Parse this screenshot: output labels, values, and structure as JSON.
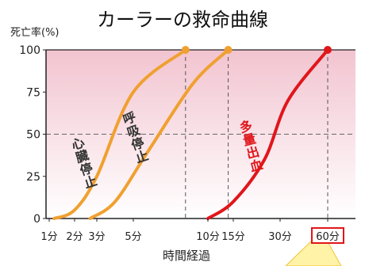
{
  "chart_data": {
    "type": "line",
    "title": "カーラーの救命曲線",
    "ylabel": "死亡率(%)",
    "xlabel": "時間経過",
    "ylim": [
      0,
      100
    ],
    "y_ticks": [
      "100",
      "75",
      "50",
      "25",
      "0"
    ],
    "y_tick_values": [
      100,
      75,
      50,
      25,
      0
    ],
    "x_ticks": [
      "1分",
      "2分",
      "3分",
      "5分",
      "10分",
      "15分",
      "30分",
      "60分"
    ],
    "x_tick_minutes": [
      1,
      2,
      3,
      5,
      10,
      15,
      30,
      60
    ],
    "highlight_tick": "60分",
    "grid": "dashed horizontal line at 50%; dashed vertical lines at the 100% point of each curve",
    "series": [
      {
        "name": "心臓停止",
        "color": "#f0a030",
        "minutes": [
          1.2,
          2,
          3,
          5,
          8.5
        ],
        "values": [
          0,
          5,
          25,
          75,
          100
        ]
      },
      {
        "name": "呼吸停止",
        "color": "#f0a030",
        "minutes": [
          2.7,
          4,
          6,
          9,
          14
        ],
        "values": [
          0,
          10,
          40,
          80,
          100
        ]
      },
      {
        "name": "多量出血",
        "color": "#e0161b",
        "minutes": [
          10,
          15,
          25,
          35,
          60
        ],
        "values": [
          0,
          10,
          35,
          70,
          100
        ]
      }
    ],
    "colors": {
      "orange": "#f0a030",
      "red": "#e0161b",
      "highlight_box": "#e0161b",
      "shading_top": "#f2c4d0"
    }
  }
}
